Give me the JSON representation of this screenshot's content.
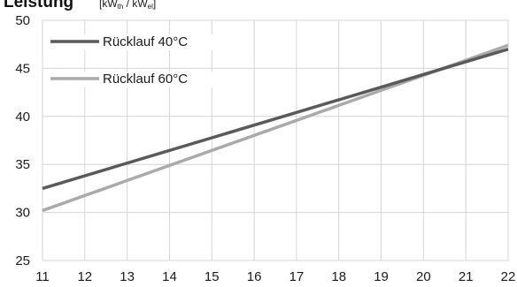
{
  "chart_data": {
    "type": "line",
    "title": "Leistung",
    "ylabel_unit": {
      "open": "[kW",
      "sub1": "th",
      "mid": " / kW",
      "sub2": "el",
      "close": "]"
    },
    "xlabel": "",
    "xlim": [
      11,
      22
    ],
    "ylim": [
      25,
      50
    ],
    "x_ticks": [
      11,
      12,
      13,
      14,
      15,
      16,
      17,
      18,
      19,
      20,
      21,
      22
    ],
    "y_ticks": [
      25,
      30,
      35,
      40,
      45,
      50
    ],
    "grid": true,
    "legend_position": "top-left",
    "series": [
      {
        "name": "Rücklauf 40°C",
        "color": "#5a5a5a",
        "x": [
          11,
          22
        ],
        "y": [
          32.5,
          47.0
        ]
      },
      {
        "name": "Rücklauf 60°C",
        "color": "#aaaaaa",
        "x": [
          11,
          22
        ],
        "y": [
          30.2,
          47.4
        ]
      }
    ]
  }
}
